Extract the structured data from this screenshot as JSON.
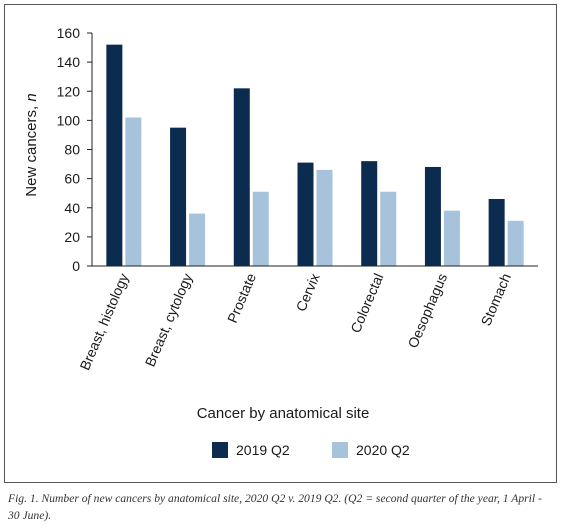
{
  "chart_data": {
    "type": "bar",
    "categories": [
      "Breast, histology",
      "Breast, cytology",
      "Prostate",
      "Cervix",
      "Colorectal",
      "Oesophagus",
      "Stomach"
    ],
    "series": [
      {
        "name": "2019 Q2",
        "values": [
          152,
          95,
          122,
          71,
          72,
          68,
          46
        ],
        "color": "#0b2b4f"
      },
      {
        "name": "2020 Q2",
        "values": [
          102,
          36,
          51,
          66,
          51,
          38,
          31
        ],
        "color": "#a7c3dc"
      }
    ],
    "xlabel": "Cancer by anatomical site",
    "ylabel_main": "New cancers, ",
    "ylabel_var": "n",
    "ylim": [
      0,
      160
    ],
    "yticks": [
      "0",
      "20",
      "40",
      "60",
      "80",
      "100",
      "120",
      "140",
      "160"
    ],
    "legend_position": "bottom",
    "grid": false
  },
  "caption": "Fig. 1. Number of new cancers by anatomical site, 2020 Q2 v. 2019 Q2. (Q2 = second quarter of the year, 1 April - 30 June)."
}
